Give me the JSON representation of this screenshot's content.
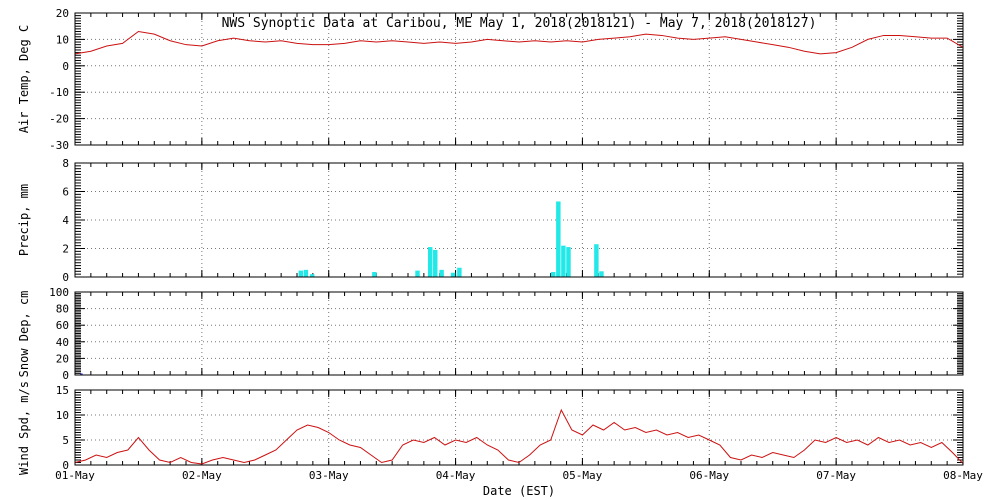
{
  "title": "NWS Synoptic Data at Caribou, ME   May  1, 2018(2018121) - May  7, 2018(2018127)",
  "xlabel": "Date (EST)",
  "colors": {
    "line": "#cc1111",
    "precip": "#22e8e8",
    "snow": "#4444cc",
    "axis": "#000000",
    "grid": "#777777",
    "text": "#000000"
  },
  "x_axis": {
    "lim": [
      1,
      8
    ],
    "tick_positions": [
      1,
      2,
      3,
      4,
      5,
      6,
      7,
      8
    ],
    "tick_labels": [
      "01-May",
      "02-May",
      "03-May",
      "04-May",
      "05-May",
      "06-May",
      "07-May",
      "08-May"
    ],
    "minor_step": 0.125
  },
  "chart_data": [
    {
      "name": "air-temp",
      "type": "line",
      "ylabel": "Air Temp, Deg C",
      "ylim": [
        -30,
        20
      ],
      "yticks": [
        -30,
        -20,
        -10,
        0,
        10,
        20
      ],
      "minor_step": 1,
      "x_start": 1.0,
      "x_step": 0.125,
      "y": [
        4.5,
        5.5,
        7.5,
        8.5,
        13,
        12,
        9.5,
        8,
        7.5,
        9.5,
        10.5,
        9.5,
        9,
        9.5,
        8.5,
        8,
        8,
        8.5,
        9.5,
        9,
        9.5,
        9,
        8.5,
        9,
        8.5,
        9,
        10,
        9.5,
        9,
        9.5,
        9,
        9.5,
        9,
        10,
        10.5,
        11,
        12,
        11.5,
        10.5,
        10,
        10.5,
        11,
        10,
        9,
        8,
        7,
        5.5,
        4.5,
        5,
        7,
        10,
        11.5,
        11.5,
        11,
        10.5,
        10.5,
        7
      ]
    },
    {
      "name": "precip",
      "type": "bar",
      "ylabel": "Precip, mm",
      "ylim": [
        0,
        8
      ],
      "yticks": [
        0,
        2,
        4,
        6,
        8
      ],
      "minor_step": 0.2,
      "bar_width": 0.035,
      "bars": [
        {
          "x": 2.78,
          "h": 0.45
        },
        {
          "x": 2.82,
          "h": 0.5
        },
        {
          "x": 2.87,
          "h": 0.2
        },
        {
          "x": 3.36,
          "h": 0.35
        },
        {
          "x": 3.7,
          "h": 0.45
        },
        {
          "x": 3.8,
          "h": 2.1
        },
        {
          "x": 3.84,
          "h": 1.9
        },
        {
          "x": 3.89,
          "h": 0.5
        },
        {
          "x": 3.98,
          "h": 0.3
        },
        {
          "x": 4.03,
          "h": 0.65
        },
        {
          "x": 4.77,
          "h": 0.35
        },
        {
          "x": 4.81,
          "h": 5.3
        },
        {
          "x": 4.85,
          "h": 2.2
        },
        {
          "x": 4.89,
          "h": 2.1
        },
        {
          "x": 5.11,
          "h": 2.3
        },
        {
          "x": 5.15,
          "h": 0.4
        }
      ]
    },
    {
      "name": "snow-depth",
      "type": "bar",
      "ylabel": "Snow Dep, cm",
      "ylim": [
        0,
        100
      ],
      "yticks": [
        0,
        20,
        40,
        60,
        80,
        100
      ],
      "minor_step": 2,
      "bar_width": 0.02,
      "color": "#4444cc",
      "bars": [
        {
          "x": 1.05,
          "h": 2
        }
      ]
    },
    {
      "name": "wind-speed",
      "type": "line",
      "ylabel": "Wind Spd, m/s",
      "ylim": [
        0,
        15
      ],
      "yticks": [
        0,
        5,
        10,
        15
      ],
      "minor_step": 0.5,
      "x_start": 1.0,
      "x_step": 0.0833333,
      "y": [
        0.5,
        1,
        2,
        1.5,
        2.5,
        3,
        5.5,
        3,
        1,
        0.5,
        1.5,
        0.5,
        0.2,
        1,
        1.5,
        1,
        0.5,
        1,
        2,
        3,
        5,
        7,
        8,
        7.5,
        6.5,
        5,
        4,
        3.5,
        2,
        0.5,
        1,
        4,
        5,
        4.5,
        5.5,
        4,
        5,
        4.5,
        5.5,
        4,
        3,
        1,
        0.5,
        2,
        4,
        5,
        11,
        7,
        6,
        8,
        7,
        8.5,
        7,
        7.5,
        6.5,
        7,
        6,
        6.5,
        5.5,
        6,
        5,
        4,
        1.5,
        1,
        2,
        1.5,
        2.5,
        2,
        1.5,
        3,
        5,
        4.5,
        5.5,
        4.5,
        5,
        4,
        5.5,
        4.5,
        5,
        4,
        4.5,
        3.5,
        4.5,
        2.5,
        0.3
      ]
    }
  ]
}
